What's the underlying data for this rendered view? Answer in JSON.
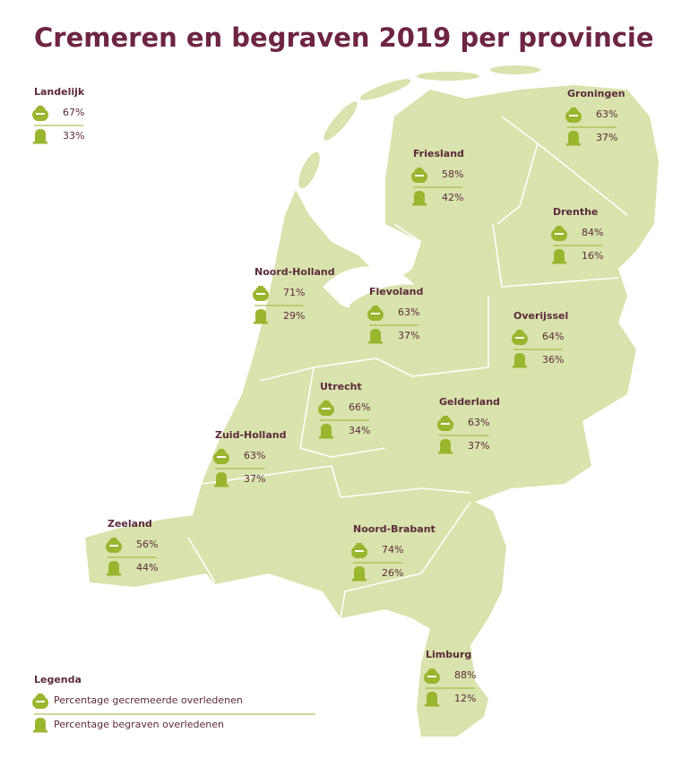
{
  "title": "Cremeren en begraven 2019 per provincie",
  "national": {
    "name": "Landelijk",
    "cremated": "67%",
    "buried": "33%"
  },
  "provinces": [
    {
      "name": "Groningen",
      "cremated": "63%",
      "buried": "37%"
    },
    {
      "name": "Friesland",
      "cremated": "58%",
      "buried": "42%"
    },
    {
      "name": "Drenthe",
      "cremated": "84%",
      "buried": "16%"
    },
    {
      "name": "Noord-Holland",
      "cremated": "71%",
      "buried": "29%"
    },
    {
      "name": "Flevoland",
      "cremated": "63%",
      "buried": "37%"
    },
    {
      "name": "Overijssel",
      "cremated": "64%",
      "buried": "36%"
    },
    {
      "name": "Utrecht",
      "cremated": "66%",
      "buried": "34%"
    },
    {
      "name": "Gelderland",
      "cremated": "63%",
      "buried": "37%"
    },
    {
      "name": "Zuid-Holland",
      "cremated": "63%",
      "buried": "37%"
    },
    {
      "name": "Zeeland",
      "cremated": "56%",
      "buried": "44%"
    },
    {
      "name": "Noord-Brabant",
      "cremated": "74%",
      "buried": "26%"
    },
    {
      "name": "Limburg",
      "cremated": "88%",
      "buried": "12%"
    }
  ],
  "legend": {
    "title": "Legenda",
    "cremated": "Percentage gecremeerde overledenen",
    "buried": "Percentage begraven overledenen"
  }
}
